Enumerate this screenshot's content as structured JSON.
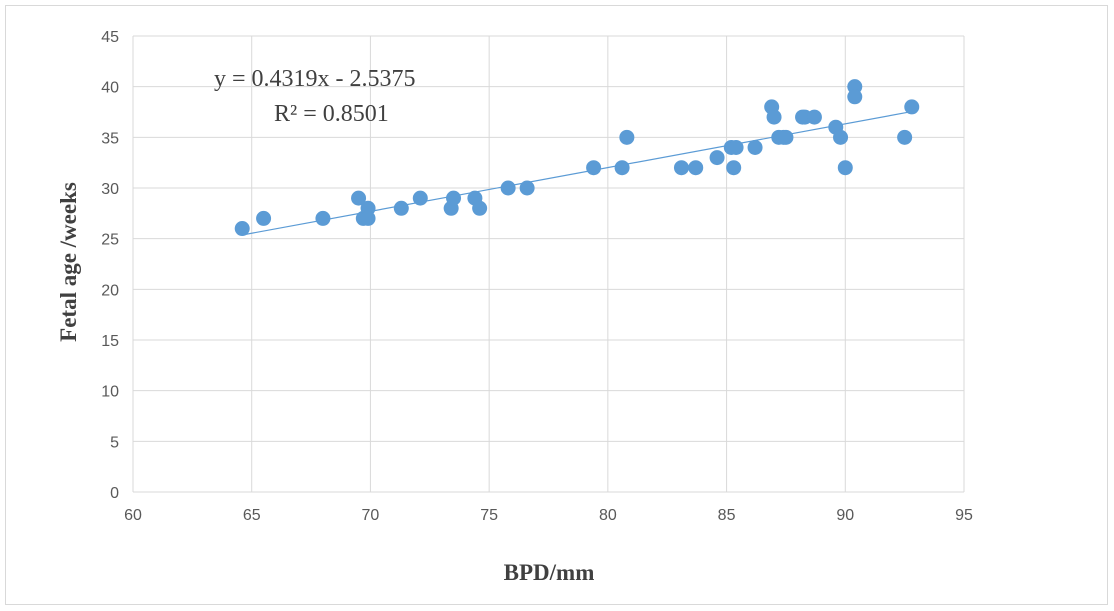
{
  "chart_data": {
    "type": "scatter",
    "xlabel": "BPD/mm",
    "ylabel": "Fetal age /weeks",
    "xlim": [
      60,
      95
    ],
    "ylim": [
      0,
      45
    ],
    "x_ticks": [
      "60",
      "65",
      "70",
      "75",
      "80",
      "85",
      "90",
      "95"
    ],
    "y_ticks": [
      "0",
      "5",
      "10",
      "15",
      "20",
      "25",
      "30",
      "35",
      "40",
      "45"
    ],
    "grid": true,
    "marker_color": "#5b9bd5",
    "trendline": {
      "type": "linear",
      "slope": 0.4319,
      "intercept": -2.5375,
      "x_range": [
        64.6,
        92.8
      ],
      "equation_label": "y = 0.4319x - 2.5375",
      "r2_label": "R² = 0.8501"
    },
    "points": [
      {
        "x": 64.6,
        "y": 26
      },
      {
        "x": 65.5,
        "y": 27
      },
      {
        "x": 68.0,
        "y": 27
      },
      {
        "x": 69.5,
        "y": 29
      },
      {
        "x": 69.7,
        "y": 27
      },
      {
        "x": 69.9,
        "y": 28
      },
      {
        "x": 69.9,
        "y": 27
      },
      {
        "x": 71.3,
        "y": 28
      },
      {
        "x": 72.1,
        "y": 29
      },
      {
        "x": 73.4,
        "y": 28
      },
      {
        "x": 73.5,
        "y": 29
      },
      {
        "x": 74.4,
        "y": 29
      },
      {
        "x": 74.6,
        "y": 28
      },
      {
        "x": 75.8,
        "y": 30
      },
      {
        "x": 76.6,
        "y": 30
      },
      {
        "x": 79.4,
        "y": 32
      },
      {
        "x": 80.6,
        "y": 32
      },
      {
        "x": 80.8,
        "y": 35
      },
      {
        "x": 83.1,
        "y": 32
      },
      {
        "x": 83.7,
        "y": 32
      },
      {
        "x": 84.6,
        "y": 33
      },
      {
        "x": 85.2,
        "y": 34
      },
      {
        "x": 85.3,
        "y": 32
      },
      {
        "x": 85.4,
        "y": 34
      },
      {
        "x": 86.2,
        "y": 34
      },
      {
        "x": 86.9,
        "y": 38
      },
      {
        "x": 87.0,
        "y": 37
      },
      {
        "x": 87.2,
        "y": 35
      },
      {
        "x": 87.4,
        "y": 35
      },
      {
        "x": 87.5,
        "y": 35
      },
      {
        "x": 88.2,
        "y": 37
      },
      {
        "x": 88.3,
        "y": 37
      },
      {
        "x": 88.7,
        "y": 37
      },
      {
        "x": 89.6,
        "y": 36
      },
      {
        "x": 89.8,
        "y": 35
      },
      {
        "x": 90.0,
        "y": 32
      },
      {
        "x": 90.4,
        "y": 40
      },
      {
        "x": 90.4,
        "y": 39
      },
      {
        "x": 92.5,
        "y": 35
      },
      {
        "x": 92.8,
        "y": 38
      }
    ]
  }
}
